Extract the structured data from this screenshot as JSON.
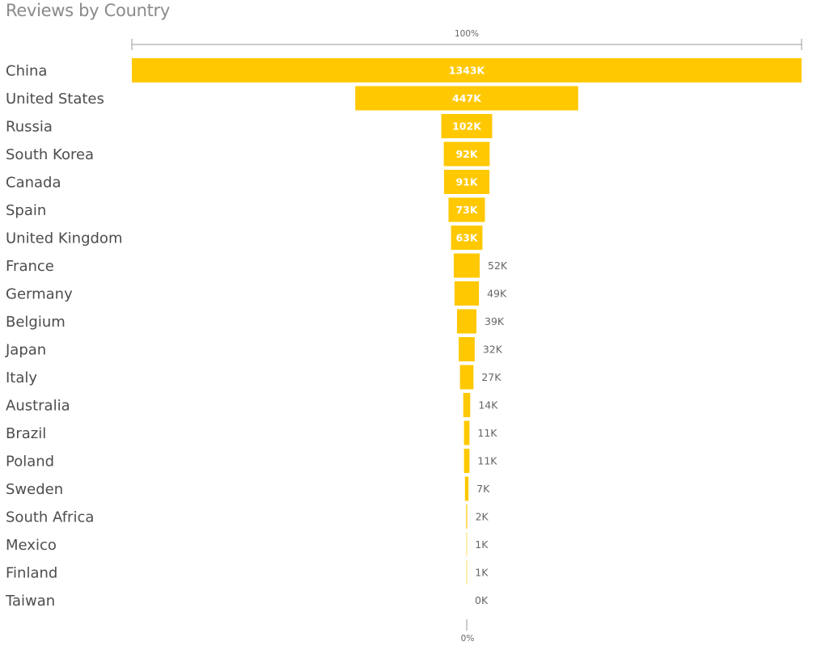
{
  "chart_data": {
    "type": "bar",
    "subtype": "funnel",
    "title": "Reviews by Country",
    "categories": [
      "China",
      "United States",
      "Russia",
      "South Korea",
      "Canada",
      "Spain",
      "United Kingdom",
      "France",
      "Germany",
      "Belgium",
      "Japan",
      "Italy",
      "Australia",
      "Brazil",
      "Poland",
      "Sweden",
      "South Africa",
      "Mexico",
      "Finland",
      "Taiwan"
    ],
    "values": [
      1343,
      447,
      102,
      92,
      91,
      73,
      63,
      52,
      49,
      39,
      32,
      27,
      14,
      11,
      11,
      7,
      2,
      1,
      1,
      0
    ],
    "labels": [
      "1343K",
      "447K",
      "102K",
      "92K",
      "91K",
      "73K",
      "63K",
      "52K",
      "49K",
      "39K",
      "32K",
      "27K",
      "14K",
      "11K",
      "11K",
      "7K",
      "2K",
      "1K",
      "1K",
      "0K"
    ],
    "unit": "K",
    "scale_top_label": "100%",
    "scale_bottom_label": "0%",
    "bar_color": "#FFC800",
    "grid": false,
    "legend": "none"
  }
}
